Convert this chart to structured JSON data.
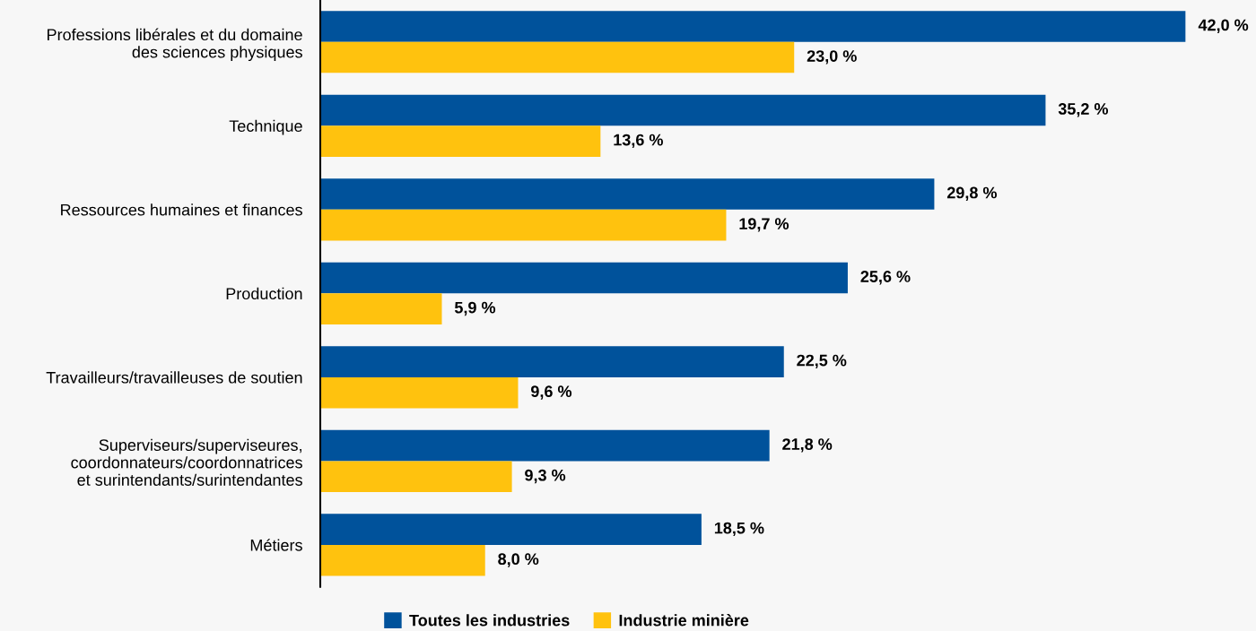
{
  "chart_data": {
    "type": "bar",
    "orientation": "horizontal",
    "categories": [
      "Professions libérales et du domaine\ndes sciences physiques",
      "Technique",
      "Ressources humaines et finances",
      "Production",
      "Travailleurs/travailleuses de soutien",
      "Superviseurs/superviseures,\ncoordonnateurs/coordonnatrices\net surintendants/surintendantes",
      "Métiers"
    ],
    "series": [
      {
        "name": "Toutes les industries",
        "color": "#00529b",
        "values": [
          42.0,
          35.2,
          29.8,
          25.6,
          22.5,
          21.8,
          18.5
        ],
        "value_labels": [
          "42,0 %",
          "35,2 %",
          "29,8 %",
          "25,6 %",
          "22,5 %",
          "21,8 %",
          "18,5 %"
        ]
      },
      {
        "name": "Industrie minière",
        "color": "#ffc20e",
        "values": [
          23.0,
          13.6,
          19.7,
          5.9,
          9.6,
          9.3,
          8.0
        ],
        "value_labels": [
          "23,0 %",
          "13,6 %",
          "19,7 %",
          "5,9 %",
          "9,6 %",
          "9,3 %",
          "8,0 %"
        ]
      }
    ],
    "tick_labels": "y",
    "grid": false,
    "legend": "bottom"
  }
}
